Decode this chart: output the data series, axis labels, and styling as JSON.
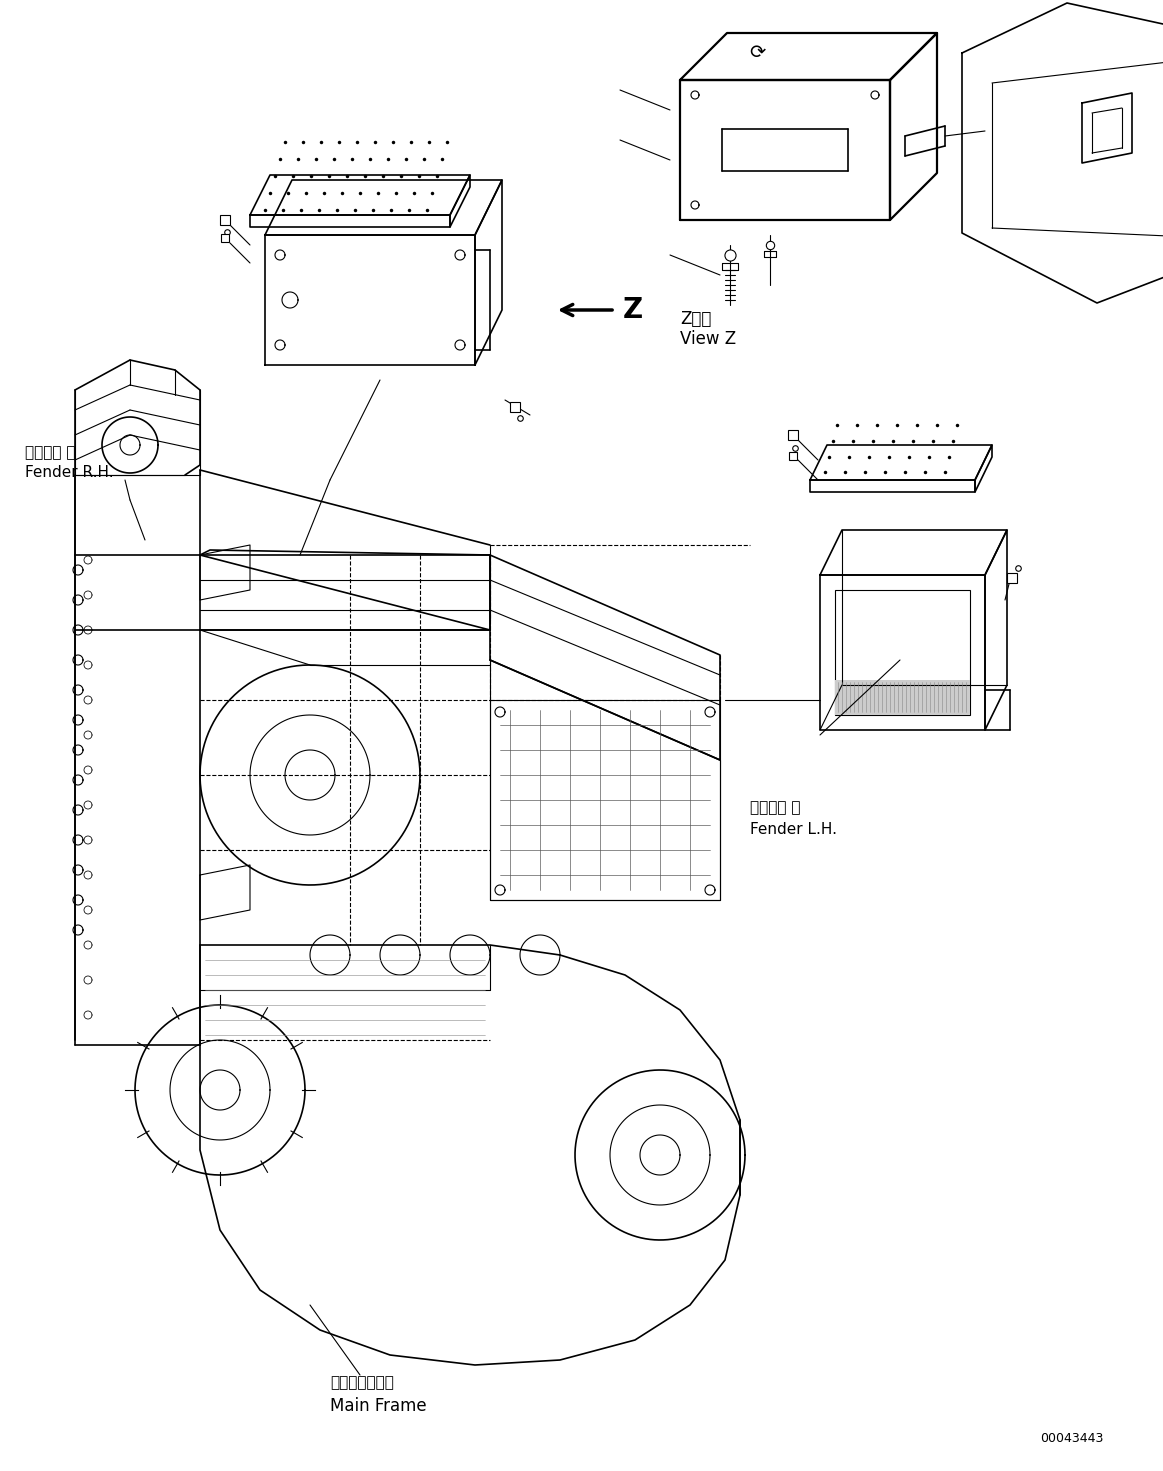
{
  "background_color": "#ffffff",
  "line_color": "#000000",
  "labels": {
    "fender_rh_jp": "フェンダ 右",
    "fender_rh_en": "Fender R.H.",
    "fender_lh_jp": "フェンダ 左",
    "fender_lh_en": "Fender L.H.",
    "main_frame_jp": "メインフレーム",
    "main_frame_en": "Main Frame",
    "view_z_jp": "Z　視",
    "view_z_en": "View Z",
    "part_number": "00043443"
  },
  "figsize": [
    11.63,
    14.71
  ],
  "dpi": 100
}
